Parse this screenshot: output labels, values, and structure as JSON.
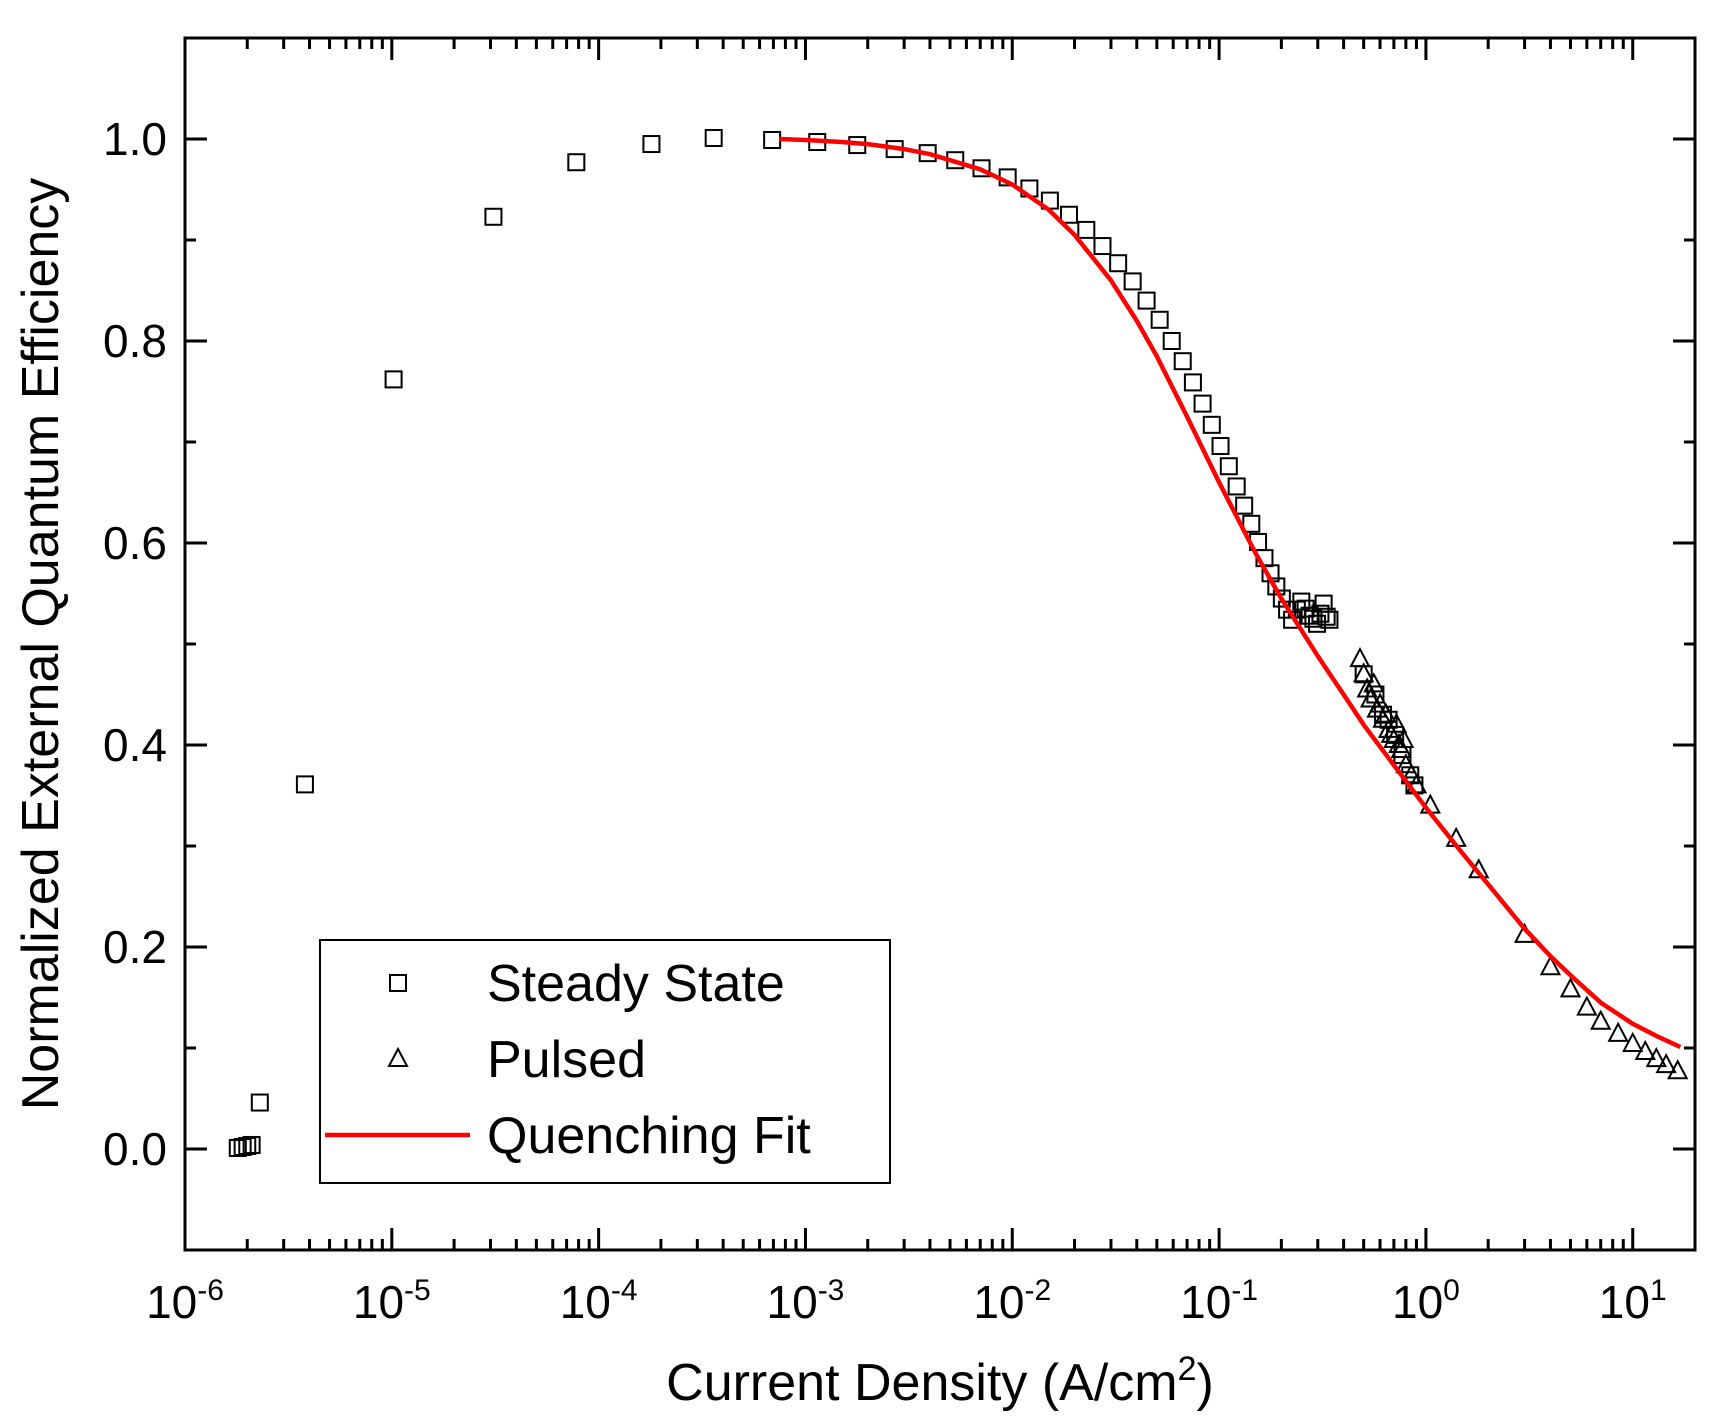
{
  "chart_data": {
    "type": "scatter",
    "xscale": "log",
    "xlim": [
      1e-06,
      20
    ],
    "ylim": [
      -0.1,
      1.1
    ],
    "xticks": [
      1e-06,
      1e-05,
      0.0001,
      0.001,
      0.01,
      0.1,
      1,
      10
    ],
    "xtick_labels": [
      {
        "base": "10",
        "exp": "-6"
      },
      {
        "base": "10",
        "exp": "-5"
      },
      {
        "base": "10",
        "exp": "-4"
      },
      {
        "base": "10",
        "exp": "-3"
      },
      {
        "base": "10",
        "exp": "-2"
      },
      {
        "base": "10",
        "exp": "-1"
      },
      {
        "base": "10",
        "exp": "0"
      },
      {
        "base": "10",
        "exp": "1"
      }
    ],
    "yticks": [
      0.0,
      0.2,
      0.4,
      0.6,
      0.8,
      1.0
    ],
    "ytick_labels": [
      "0.0",
      "0.2",
      "0.4",
      "0.6",
      "0.8",
      "1.0"
    ],
    "xlabel": {
      "main": "Current Density (A/cm",
      "sup": "2",
      "end": ")"
    },
    "ylabel": "Normalized External Quantum Efficiency",
    "grid": false,
    "legend_position": "bottom-left",
    "series": [
      {
        "name": "Steady State",
        "marker": "square",
        "color": "#000000",
        "x": [
          1.8e-06,
          1.9e-06,
          2e-06,
          2.1e-06,
          2.3e-06,
          3.8e-06,
          1.02e-05,
          3.1e-05,
          7.8e-05,
          0.00018,
          0.00036,
          0.00069,
          0.00114,
          0.00178,
          0.0027,
          0.0039,
          0.0053,
          0.0071,
          0.0095,
          0.0121,
          0.0152,
          0.0188,
          0.0228,
          0.0273,
          0.0325,
          0.0382,
          0.0446,
          0.0516,
          0.059,
          0.0667,
          0.0747,
          0.0832,
          0.0922,
          0.1016,
          0.1114,
          0.1216,
          0.1322,
          0.1431,
          0.1543,
          0.1657,
          0.1773,
          0.1891,
          0.2011,
          0.2132,
          0.2254,
          0.2376,
          0.2498,
          0.2619,
          0.2739,
          0.2858,
          0.2975,
          0.309,
          0.3202,
          0.3311,
          0.3416,
          0.5,
          0.57,
          0.62,
          0.66,
          0.71,
          0.77,
          0.84,
          0.88
        ],
        "y": [
          0.001,
          0.002,
          0.003,
          0.004,
          0.046,
          0.361,
          0.762,
          0.923,
          0.977,
          0.995,
          1.001,
          0.999,
          0.997,
          0.994,
          0.99,
          0.986,
          0.979,
          0.971,
          0.962,
          0.951,
          0.939,
          0.925,
          0.91,
          0.894,
          0.877,
          0.859,
          0.84,
          0.821,
          0.8,
          0.78,
          0.759,
          0.738,
          0.717,
          0.696,
          0.676,
          0.656,
          0.637,
          0.619,
          0.601,
          0.585,
          0.57,
          0.557,
          0.545,
          0.534,
          0.524,
          0.534,
          0.542,
          0.535,
          0.528,
          0.525,
          0.52,
          0.53,
          0.54,
          0.527,
          0.524,
          0.47,
          0.45,
          0.43,
          0.425,
          0.41,
          0.39,
          0.37,
          0.36
        ]
      },
      {
        "name": "Pulsed",
        "marker": "triangle",
        "color": "#000000",
        "x": [
          0.48,
          0.5,
          0.52,
          0.54,
          0.56,
          0.58,
          0.6,
          0.62,
          0.64,
          0.66,
          0.68,
          0.7,
          0.72,
          0.74,
          0.76,
          0.78,
          0.8,
          0.85,
          0.9,
          1.05,
          1.4,
          1.8,
          3.0,
          4.0,
          5.0,
          6.0,
          7.0,
          8.5,
          10.0,
          11.5,
          13.0,
          14.5,
          16.5
        ],
        "y": [
          0.485,
          0.47,
          0.455,
          0.445,
          0.46,
          0.435,
          0.44,
          0.425,
          0.43,
          0.415,
          0.41,
          0.405,
          0.42,
          0.4,
          0.395,
          0.405,
          0.38,
          0.37,
          0.36,
          0.34,
          0.307,
          0.276,
          0.212,
          0.18,
          0.158,
          0.14,
          0.126,
          0.114,
          0.104,
          0.096,
          0.089,
          0.083,
          0.077
        ]
      },
      {
        "name": "Quenching Fit",
        "marker": "line",
        "color": "#ff0000",
        "x": [
          0.00075,
          0.001,
          0.0015,
          0.002,
          0.003,
          0.004,
          0.005,
          0.007,
          0.01,
          0.015,
          0.02,
          0.03,
          0.04,
          0.05,
          0.07,
          0.1,
          0.15,
          0.2,
          0.3,
          0.4,
          0.5,
          0.7,
          1.0,
          1.5,
          2.0,
          3.0,
          4.0,
          5.0,
          7.0,
          10.0,
          13.0,
          17.0
        ],
        "y": [
          1.0,
          0.999,
          0.997,
          0.995,
          0.99,
          0.985,
          0.979,
          0.97,
          0.955,
          0.93,
          0.905,
          0.86,
          0.82,
          0.785,
          0.725,
          0.66,
          0.59,
          0.545,
          0.488,
          0.45,
          0.42,
          0.38,
          0.338,
          0.293,
          0.262,
          0.218,
          0.191,
          0.172,
          0.145,
          0.124,
          0.112,
          0.101
        ]
      }
    ]
  }
}
